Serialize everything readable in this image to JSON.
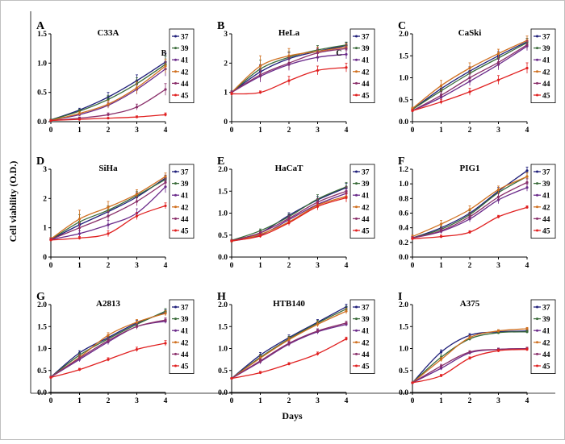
{
  "figure": {
    "ylabel": "Cell viability (O.D.)",
    "xlabel": "Days"
  },
  "colors": {
    "37": "#1f1f7a",
    "39": "#3a6b3a",
    "41": "#6a2a8a",
    "42": "#d07020",
    "44": "#8a2f6a",
    "45": "#e02020"
  },
  "chart_data": [
    {
      "type": "line",
      "letter": "A",
      "title": "C33A",
      "note": "B",
      "x": [
        0,
        1,
        2,
        3,
        4
      ],
      "ylim": [
        0,
        1.5
      ],
      "yticks": [
        "0.0",
        "0.5",
        "1.0",
        "1.5"
      ],
      "series": [
        {
          "name": "37",
          "values": [
            0.03,
            0.2,
            0.42,
            0.7,
            1.02
          ],
          "err": [
            0.01,
            0.03,
            0.08,
            0.1,
            0.15
          ]
        },
        {
          "name": "39",
          "values": [
            0.03,
            0.18,
            0.38,
            0.65,
            0.98
          ],
          "err": [
            0.01,
            0.03,
            0.07,
            0.1,
            0.14
          ]
        },
        {
          "name": "41",
          "values": [
            0.02,
            0.12,
            0.28,
            0.55,
            0.9
          ],
          "err": [
            0.01,
            0.02,
            0.05,
            0.08,
            0.12
          ]
        },
        {
          "name": "42",
          "values": [
            0.02,
            0.14,
            0.3,
            0.58,
            0.95
          ],
          "err": [
            0.01,
            0.03,
            0.06,
            0.1,
            0.12
          ]
        },
        {
          "name": "44",
          "values": [
            0.02,
            0.06,
            0.12,
            0.25,
            0.55
          ],
          "err": [
            0.01,
            0.02,
            0.03,
            0.05,
            0.1
          ]
        },
        {
          "name": "45",
          "values": [
            0.02,
            0.04,
            0.06,
            0.08,
            0.12
          ],
          "err": [
            0.01,
            0.01,
            0.01,
            0.02,
            0.03
          ]
        }
      ]
    },
    {
      "type": "line",
      "letter": "B",
      "title": "HeLa",
      "note": "C",
      "x": [
        0,
        1,
        2,
        3,
        4
      ],
      "ylim": [
        0,
        3
      ],
      "yticks": [
        "0",
        "1",
        "2",
        "3"
      ],
      "series": [
        {
          "name": "37",
          "values": [
            1.0,
            1.7,
            2.15,
            2.4,
            2.6
          ],
          "err": [
            0.05,
            0.25,
            0.2,
            0.15,
            0.1
          ]
        },
        {
          "name": "39",
          "values": [
            1.0,
            1.8,
            2.2,
            2.45,
            2.62
          ],
          "err": [
            0.05,
            0.3,
            0.2,
            0.15,
            0.1
          ]
        },
        {
          "name": "41",
          "values": [
            1.0,
            1.55,
            1.95,
            2.2,
            2.3
          ],
          "err": [
            0.05,
            0.2,
            0.2,
            0.15,
            0.15
          ]
        },
        {
          "name": "42",
          "values": [
            1.0,
            1.9,
            2.25,
            2.4,
            2.55
          ],
          "err": [
            0.05,
            0.35,
            0.25,
            0.15,
            0.12
          ]
        },
        {
          "name": "44",
          "values": [
            1.0,
            1.6,
            2.0,
            2.35,
            2.5
          ],
          "err": [
            0.05,
            0.2,
            0.2,
            0.15,
            0.12
          ]
        },
        {
          "name": "45",
          "values": [
            0.95,
            1.0,
            1.4,
            1.75,
            1.85
          ],
          "err": [
            0.05,
            0.05,
            0.15,
            0.15,
            0.15
          ]
        }
      ]
    },
    {
      "type": "line",
      "letter": "C",
      "title": "CaSki",
      "note": "",
      "x": [
        0,
        1,
        2,
        3,
        4
      ],
      "ylim": [
        0,
        2.0
      ],
      "yticks": [
        "0.0",
        "0.5",
        "1.0",
        "1.5",
        "2.0"
      ],
      "series": [
        {
          "name": "37",
          "values": [
            0.28,
            0.75,
            1.15,
            1.5,
            1.82
          ],
          "err": [
            0.03,
            0.08,
            0.1,
            0.1,
            0.08
          ]
        },
        {
          "name": "39",
          "values": [
            0.28,
            0.7,
            1.1,
            1.45,
            1.8
          ],
          "err": [
            0.03,
            0.1,
            0.12,
            0.12,
            0.1
          ]
        },
        {
          "name": "41",
          "values": [
            0.25,
            0.55,
            0.92,
            1.3,
            1.72
          ],
          "err": [
            0.03,
            0.08,
            0.1,
            0.12,
            0.1
          ]
        },
        {
          "name": "42",
          "values": [
            0.3,
            0.82,
            1.22,
            1.55,
            1.85
          ],
          "err": [
            0.03,
            0.12,
            0.12,
            0.1,
            0.1
          ]
        },
        {
          "name": "44",
          "values": [
            0.25,
            0.6,
            1.0,
            1.35,
            1.75
          ],
          "err": [
            0.03,
            0.08,
            0.1,
            0.12,
            0.1
          ]
        },
        {
          "name": "45",
          "values": [
            0.25,
            0.45,
            0.68,
            0.95,
            1.22
          ],
          "err": [
            0.03,
            0.05,
            0.08,
            0.1,
            0.12
          ]
        }
      ]
    },
    {
      "type": "line",
      "letter": "D",
      "title": "SiHa",
      "note": "",
      "x": [
        0,
        1,
        2,
        3,
        4
      ],
      "ylim": [
        0,
        3
      ],
      "yticks": [
        "0",
        "1",
        "2",
        "3"
      ],
      "series": [
        {
          "name": "37",
          "values": [
            0.6,
            1.1,
            1.55,
            2.05,
            2.7
          ],
          "err": [
            0.05,
            0.2,
            0.15,
            0.15,
            0.1
          ]
        },
        {
          "name": "39",
          "values": [
            0.6,
            1.2,
            1.6,
            2.1,
            2.65
          ],
          "err": [
            0.05,
            0.25,
            0.15,
            0.15,
            0.1
          ]
        },
        {
          "name": "41",
          "values": [
            0.6,
            0.8,
            1.1,
            1.5,
            2.4
          ],
          "err": [
            0.05,
            0.1,
            0.15,
            0.15,
            0.2
          ]
        },
        {
          "name": "42",
          "values": [
            0.62,
            1.3,
            1.7,
            2.15,
            2.75
          ],
          "err": [
            0.05,
            0.3,
            0.2,
            0.15,
            0.12
          ]
        },
        {
          "name": "44",
          "values": [
            0.6,
            1.0,
            1.4,
            1.9,
            2.55
          ],
          "err": [
            0.05,
            0.15,
            0.15,
            0.15,
            0.12
          ]
        },
        {
          "name": "45",
          "values": [
            0.58,
            0.65,
            0.8,
            1.4,
            1.75
          ],
          "err": [
            0.04,
            0.05,
            0.1,
            0.12,
            0.1
          ]
        }
      ]
    },
    {
      "type": "line",
      "letter": "E",
      "title": "HaCaT",
      "note": "",
      "x": [
        0,
        1,
        2,
        3,
        4
      ],
      "ylim": [
        0,
        2.0
      ],
      "yticks": [
        "0.0",
        "0.5",
        "1.0",
        "1.5",
        "2.0"
      ],
      "series": [
        {
          "name": "37",
          "values": [
            0.38,
            0.55,
            0.95,
            1.3,
            1.58
          ],
          "err": [
            0.02,
            0.04,
            0.06,
            0.08,
            0.1
          ]
        },
        {
          "name": "39",
          "values": [
            0.38,
            0.6,
            0.92,
            1.32,
            1.6
          ],
          "err": [
            0.02,
            0.04,
            0.06,
            0.1,
            0.1
          ]
        },
        {
          "name": "41",
          "values": [
            0.36,
            0.5,
            0.85,
            1.2,
            1.45
          ],
          "err": [
            0.02,
            0.04,
            0.06,
            0.08,
            0.1
          ]
        },
        {
          "name": "42",
          "values": [
            0.36,
            0.52,
            0.8,
            1.18,
            1.38
          ],
          "err": [
            0.02,
            0.04,
            0.06,
            0.08,
            0.1
          ]
        },
        {
          "name": "44",
          "values": [
            0.37,
            0.55,
            0.88,
            1.25,
            1.5
          ],
          "err": [
            0.02,
            0.04,
            0.06,
            0.08,
            0.1
          ]
        },
        {
          "name": "45",
          "values": [
            0.37,
            0.48,
            0.78,
            1.15,
            1.35
          ],
          "err": [
            0.02,
            0.04,
            0.06,
            0.08,
            0.1
          ]
        }
      ]
    },
    {
      "type": "line",
      "letter": "F",
      "title": "PIG1",
      "note": "",
      "x": [
        0,
        1,
        2,
        3,
        4
      ],
      "ylim": [
        0,
        1.2
      ],
      "yticks": [
        "0.0",
        "0.2",
        "0.4",
        "0.6",
        "0.8",
        "1.0",
        "1.2"
      ],
      "series": [
        {
          "name": "37",
          "values": [
            0.26,
            0.4,
            0.6,
            0.9,
            1.18
          ],
          "err": [
            0.02,
            0.04,
            0.05,
            0.05,
            0.05
          ]
        },
        {
          "name": "39",
          "values": [
            0.26,
            0.38,
            0.58,
            0.88,
            1.1
          ],
          "err": [
            0.02,
            0.04,
            0.05,
            0.05,
            0.05
          ]
        },
        {
          "name": "41",
          "values": [
            0.26,
            0.35,
            0.52,
            0.78,
            0.95
          ],
          "err": [
            0.02,
            0.03,
            0.04,
            0.05,
            0.05
          ]
        },
        {
          "name": "42",
          "values": [
            0.28,
            0.45,
            0.65,
            0.92,
            1.1
          ],
          "err": [
            0.02,
            0.05,
            0.05,
            0.05,
            0.05
          ]
        },
        {
          "name": "44",
          "values": [
            0.26,
            0.36,
            0.55,
            0.82,
            1.02
          ],
          "err": [
            0.02,
            0.03,
            0.04,
            0.05,
            0.05
          ]
        },
        {
          "name": "45",
          "values": [
            0.25,
            0.28,
            0.34,
            0.55,
            0.68
          ],
          "err": [
            0.02,
            0.02,
            0.02,
            0.02,
            0.02
          ]
        }
      ]
    },
    {
      "type": "line",
      "letter": "G",
      "title": "A2813",
      "note": "",
      "x": [
        0,
        1,
        2,
        3,
        4
      ],
      "ylim": [
        0,
        2.0
      ],
      "yticks": [
        "0.0",
        "0.5",
        "1.0",
        "1.5",
        "2.0"
      ],
      "series": [
        {
          "name": "37",
          "values": [
            0.35,
            0.9,
            1.25,
            1.58,
            1.82
          ],
          "err": [
            0.02,
            0.05,
            0.06,
            0.06,
            0.06
          ]
        },
        {
          "name": "39",
          "values": [
            0.35,
            0.85,
            1.22,
            1.55,
            1.85
          ],
          "err": [
            0.02,
            0.05,
            0.06,
            0.06,
            0.06
          ]
        },
        {
          "name": "41",
          "values": [
            0.35,
            0.75,
            1.15,
            1.5,
            1.62
          ],
          "err": [
            0.02,
            0.05,
            0.06,
            0.06,
            0.05
          ]
        },
        {
          "name": "42",
          "values": [
            0.35,
            0.8,
            1.3,
            1.6,
            1.8
          ],
          "err": [
            0.02,
            0.05,
            0.06,
            0.06,
            0.06
          ]
        },
        {
          "name": "44",
          "values": [
            0.35,
            0.78,
            1.18,
            1.5,
            1.65
          ],
          "err": [
            0.02,
            0.05,
            0.06,
            0.06,
            0.05
          ]
        },
        {
          "name": "45",
          "values": [
            0.34,
            0.52,
            0.75,
            0.98,
            1.12
          ],
          "err": [
            0.02,
            0.03,
            0.04,
            0.05,
            0.06
          ]
        }
      ]
    },
    {
      "type": "line",
      "letter": "H",
      "title": "HTB140",
      "note": "",
      "x": [
        0,
        1,
        2,
        3,
        4
      ],
      "ylim": [
        0,
        2.0
      ],
      "yticks": [
        "0.0",
        "0.5",
        "1.0",
        "1.5",
        "2.0"
      ],
      "series": [
        {
          "name": "37",
          "values": [
            0.32,
            0.85,
            1.25,
            1.6,
            1.95
          ],
          "err": [
            0.02,
            0.06,
            0.06,
            0.06,
            0.06
          ]
        },
        {
          "name": "39",
          "values": [
            0.32,
            0.8,
            1.22,
            1.58,
            1.9
          ],
          "err": [
            0.02,
            0.06,
            0.06,
            0.06,
            0.06
          ]
        },
        {
          "name": "41",
          "values": [
            0.32,
            0.7,
            1.1,
            1.38,
            1.55
          ],
          "err": [
            0.02,
            0.05,
            0.05,
            0.05,
            0.04
          ]
        },
        {
          "name": "42",
          "values": [
            0.32,
            0.78,
            1.2,
            1.55,
            1.85
          ],
          "err": [
            0.02,
            0.05,
            0.06,
            0.06,
            0.06
          ]
        },
        {
          "name": "44",
          "values": [
            0.32,
            0.72,
            1.12,
            1.4,
            1.58
          ],
          "err": [
            0.02,
            0.05,
            0.05,
            0.05,
            0.04
          ]
        },
        {
          "name": "45",
          "values": [
            0.32,
            0.45,
            0.65,
            0.88,
            1.22
          ],
          "err": [
            0.02,
            0.03,
            0.03,
            0.04,
            0.04
          ]
        }
      ]
    },
    {
      "type": "line",
      "letter": "I",
      "title": "A375",
      "note": "",
      "x": [
        0,
        1,
        2,
        3,
        4
      ],
      "ylim": [
        0,
        2.0
      ],
      "yticks": [
        "0.0",
        "0.5",
        "1.0",
        "1.5",
        "2.0"
      ],
      "series": [
        {
          "name": "37",
          "values": [
            0.22,
            0.92,
            1.3,
            1.38,
            1.4
          ],
          "err": [
            0.02,
            0.05,
            0.04,
            0.03,
            0.03
          ]
        },
        {
          "name": "39",
          "values": [
            0.22,
            0.8,
            1.22,
            1.36,
            1.38
          ],
          "err": [
            0.02,
            0.05,
            0.04,
            0.03,
            0.03
          ]
        },
        {
          "name": "41",
          "values": [
            0.22,
            0.55,
            0.9,
            0.98,
            1.0
          ],
          "err": [
            0.02,
            0.04,
            0.03,
            0.03,
            0.03
          ]
        },
        {
          "name": "42",
          "values": [
            0.22,
            0.75,
            1.25,
            1.4,
            1.45
          ],
          "err": [
            0.02,
            0.05,
            0.04,
            0.03,
            0.03
          ]
        },
        {
          "name": "44",
          "values": [
            0.22,
            0.6,
            0.92,
            0.98,
            1.0
          ],
          "err": [
            0.02,
            0.04,
            0.03,
            0.03,
            0.03
          ]
        },
        {
          "name": "45",
          "values": [
            0.22,
            0.38,
            0.78,
            0.95,
            0.98
          ],
          "err": [
            0.02,
            0.03,
            0.03,
            0.03,
            0.03
          ]
        }
      ]
    }
  ]
}
